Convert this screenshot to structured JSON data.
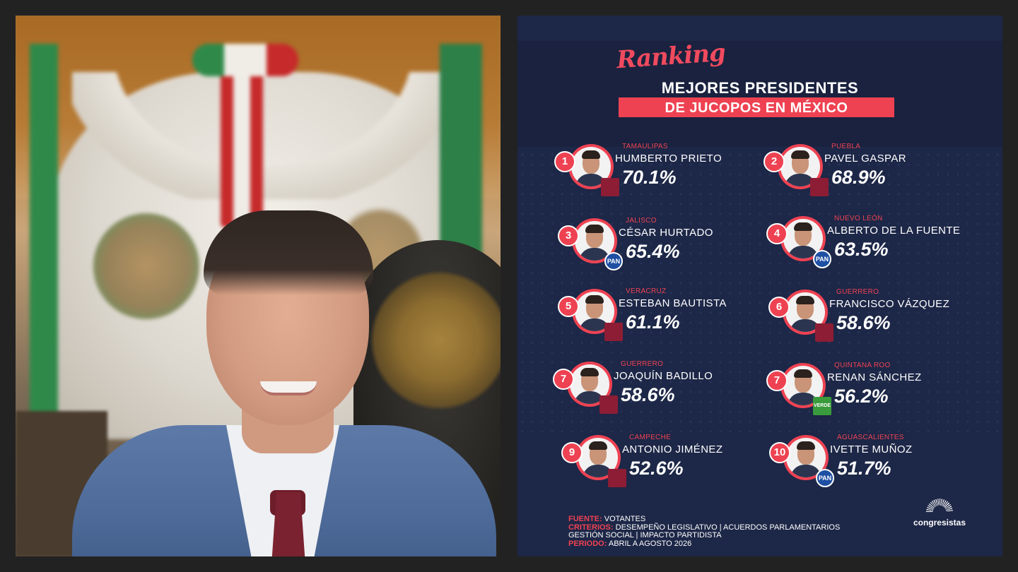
{
  "heading": {
    "script": "Ranking",
    "line1": "MEJORES PRESIDENTES",
    "line2": "DE JUCOPOS EN MÉXICO"
  },
  "colors": {
    "accent": "#ee4252",
    "navy": "#1d2747",
    "morena": "#8d1d34",
    "pan": "#1e4fa3",
    "verde": "#3a9b3c"
  },
  "ranking": [
    {
      "rank": "1",
      "state": "TAMAULIPAS",
      "name": "HUMBERTO PRIETO",
      "pct": "70.1%",
      "party_icon": "morena-logo-icon"
    },
    {
      "rank": "2",
      "state": "PUEBLA",
      "name": "PAVEL GASPAR",
      "pct": "68.9%",
      "party_icon": "morena-logo-icon"
    },
    {
      "rank": "3",
      "state": "JALISCO",
      "name": "CÉSAR HURTADO",
      "pct": "65.4%",
      "party_icon": "pan-logo-icon",
      "party": "PAN"
    },
    {
      "rank": "4",
      "state": "NUEVO LEÓN",
      "name": "ALBERTO DE LA FUENTE",
      "pct": "63.5%",
      "party_icon": "pan-logo-icon",
      "party": "PAN"
    },
    {
      "rank": "5",
      "state": "VERACRUZ",
      "name": "ESTEBAN BAUTISTA",
      "pct": "61.1%",
      "party_icon": "morena-logo-icon"
    },
    {
      "rank": "6",
      "state": "GUERRERO",
      "name": "FRANCISCO VÁZQUEZ",
      "pct": "58.6%",
      "party_icon": "morena-logo-icon"
    },
    {
      "rank": "7",
      "state": "GUERRERO",
      "name": "JOAQUÍN BADILLO",
      "pct": "58.6%",
      "party_icon": "morena-logo-icon"
    },
    {
      "rank": "7",
      "state": "QUINTANA ROO",
      "name": "RENAN SÁNCHEZ",
      "pct": "56.2%",
      "party_icon": "verde-logo-icon",
      "party": "VERDE"
    },
    {
      "rank": "9",
      "state": "CAMPECHE",
      "name": "ANTONIO JIMÉNEZ",
      "pct": "52.6%",
      "party_icon": "morena-logo-icon"
    },
    {
      "rank": "10",
      "state": "AGUASCALIENTES",
      "name": "IVETTE MUÑOZ",
      "pct": "51.7%",
      "party_icon": "pan-logo-icon",
      "party": "PAN"
    }
  ],
  "footer": {
    "fuente_label": "FUENTE:",
    "fuente": "VOTANTES",
    "criterios_label": "CRITERIOS:",
    "criterios_1": "DESEMPEÑO LEGISLATIVO | ACUERDOS PARLAMENTARIOS",
    "criterios_2": "GESTIÓN SOCIAL | IMPACTO PARTIDISTA",
    "periodo_label": "PERIODO:",
    "periodo": "ABRIL A AGOSTO 2026"
  },
  "logo": {
    "text": "congresistas",
    "icon": "chamber-arc-icon"
  }
}
